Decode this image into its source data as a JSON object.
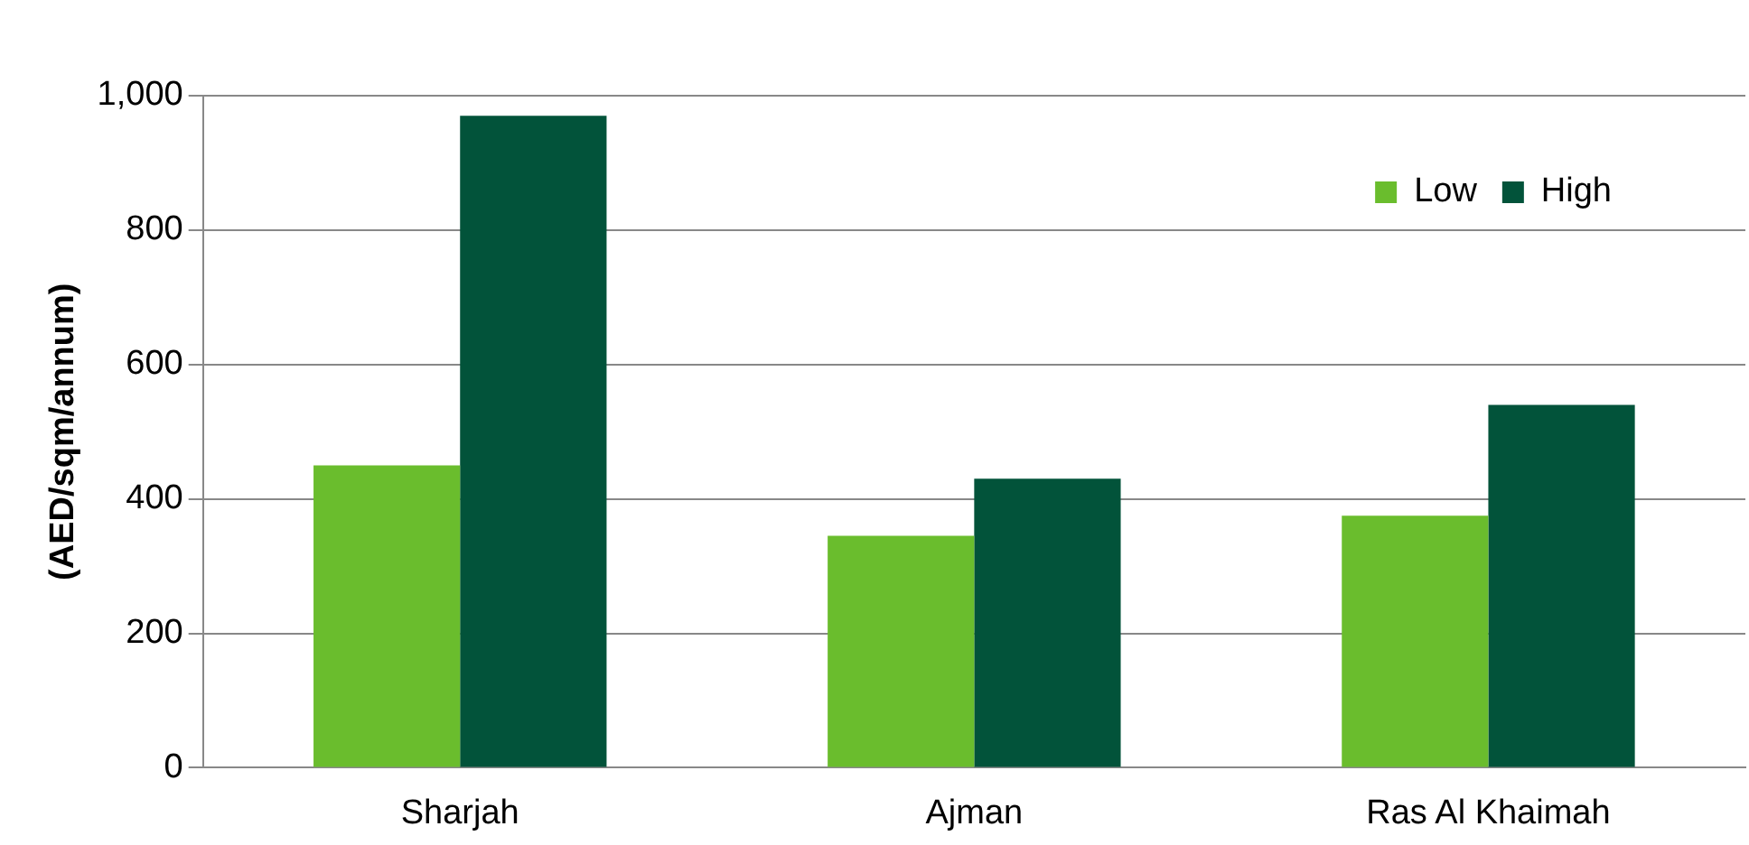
{
  "chart_data": {
    "type": "bar",
    "ylabel": "(AED/sqm/annum)",
    "categories": [
      "Sharjah",
      "Ajman",
      "Ras Al Khaimah"
    ],
    "series": [
      {
        "name": "Low",
        "color": "#6abd2d",
        "values": [
          450,
          345,
          375
        ]
      },
      {
        "name": "High",
        "color": "#02533a",
        "values": [
          970,
          430,
          540
        ]
      }
    ],
    "ylim": [
      0,
      1000
    ],
    "yticks": [
      0,
      200,
      400,
      600,
      800,
      {
        "value": 1000,
        "label": "1,000"
      }
    ],
    "grid": "y",
    "legend": "top right"
  }
}
